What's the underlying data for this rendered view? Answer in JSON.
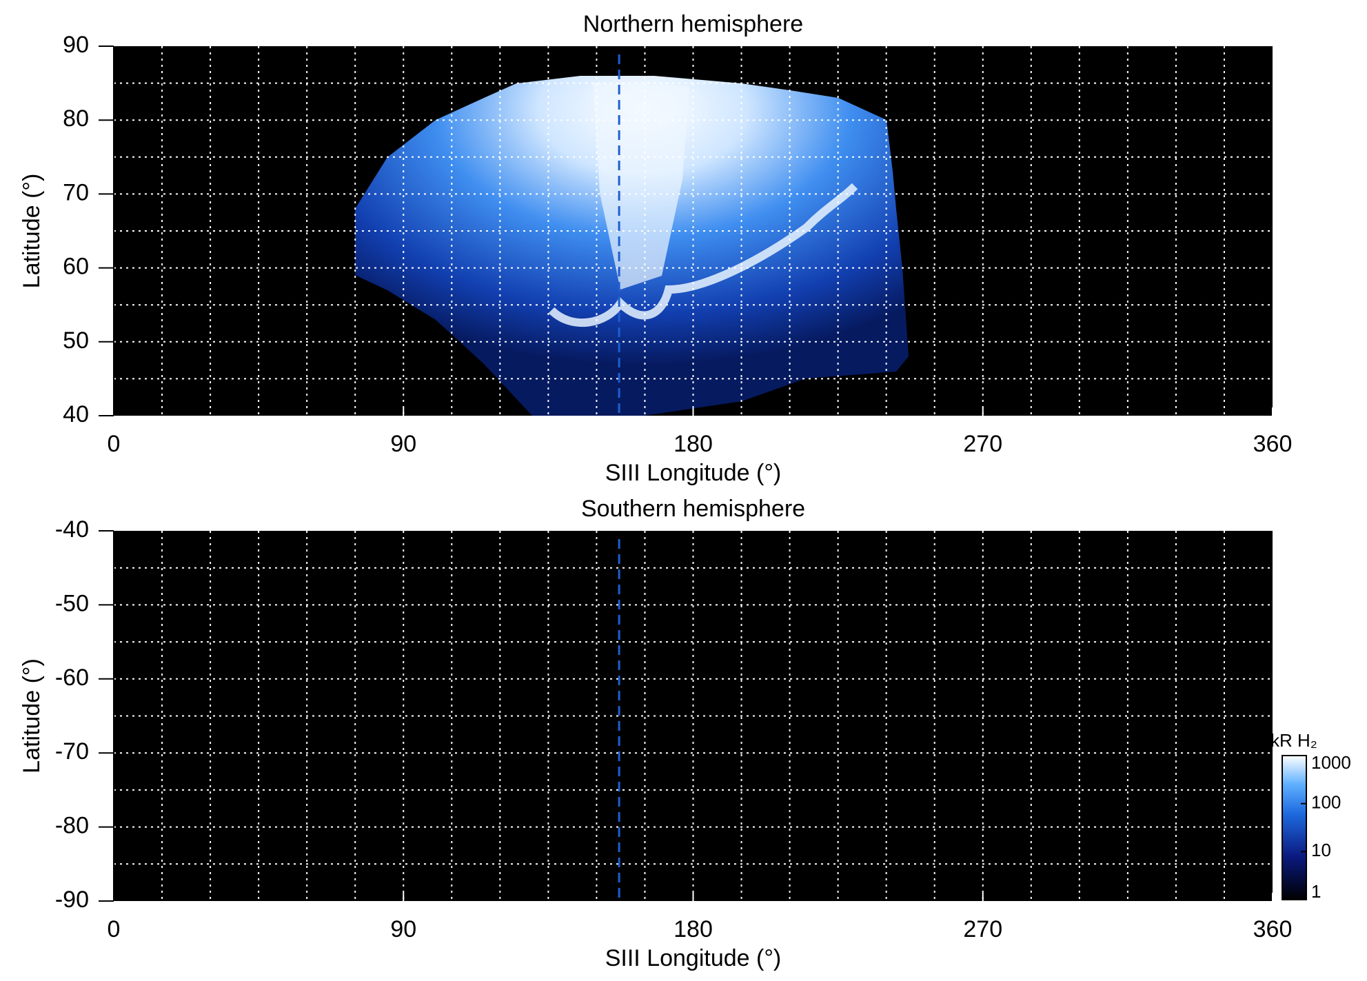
{
  "chart_data": [
    {
      "type": "heatmap",
      "title": "Northern hemisphere",
      "x_label": "SIII Longitude (°)",
      "y_label": "Latitude (°)",
      "xlim": [
        0,
        360
      ],
      "xticks": [
        0,
        90,
        180,
        270,
        360
      ],
      "ylim": [
        40,
        90
      ],
      "yticks": [
        40,
        50,
        60,
        70,
        80,
        90
      ],
      "grid": true,
      "xgrid_step": 15,
      "ygrid_step": 5,
      "vline": 157,
      "vline_color": "#1f5fd0"
    },
    {
      "type": "heatmap",
      "title": "Southern hemisphere",
      "x_label": "SIII Longitude (°)",
      "y_label": "Latitude (°)",
      "xlim": [
        0,
        360
      ],
      "xticks": [
        0,
        90,
        180,
        270,
        360
      ],
      "ylim": [
        -90,
        -40
      ],
      "yticks": [
        -90,
        -80,
        -70,
        -60,
        -50,
        -40
      ],
      "grid": true,
      "xgrid_step": 15,
      "ygrid_step": 5,
      "vline": 157,
      "vline_color": "#1f5fd0"
    }
  ],
  "colorbar": {
    "label": "kR H₂",
    "scale": "log",
    "lim": [
      1,
      1000
    ],
    "ticks": [
      1,
      10,
      100,
      1000
    ]
  }
}
